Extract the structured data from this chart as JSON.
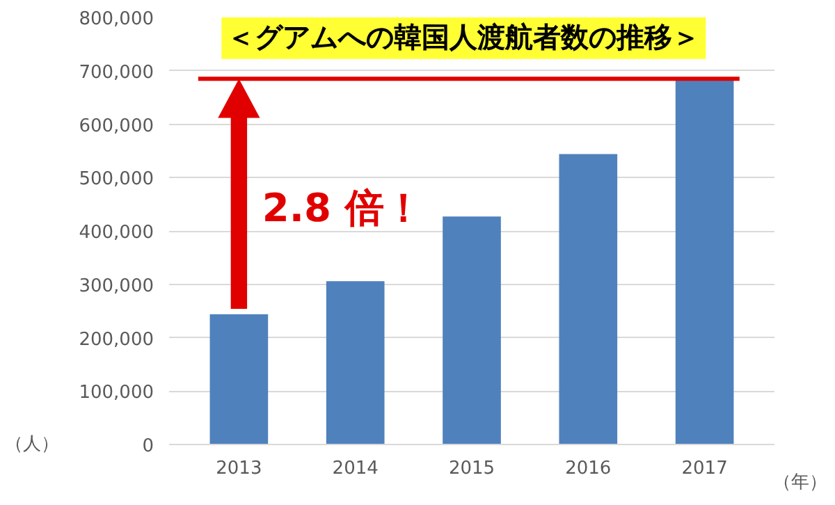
{
  "chart_data": {
    "type": "bar",
    "title": "＜グアムへの韓国人渡航者数の推移＞",
    "xlabel": "（年）",
    "ylabel": "（人）",
    "categories": [
      "2013",
      "2014",
      "2015",
      "2016",
      "2017"
    ],
    "values": [
      244000,
      306000,
      427000,
      544000,
      685000
    ],
    "color": "#4f81bd",
    "ylim": [
      0,
      800000
    ],
    "yticks": [
      {
        "value": 0,
        "label": "0"
      },
      {
        "value": 100000,
        "label": "100,000"
      },
      {
        "value": 200000,
        "label": "200,000"
      },
      {
        "value": 300000,
        "label": "300,000"
      },
      {
        "value": 400000,
        "label": "400,000"
      },
      {
        "value": 500000,
        "label": "500,000"
      },
      {
        "value": 600000,
        "label": "600,000"
      },
      {
        "value": 700000,
        "label": "700,000"
      },
      {
        "value": 800000,
        "label": "800,000"
      }
    ],
    "grid": "y",
    "legend": false,
    "ref_lines": [
      {
        "axis": "y",
        "value": 685000,
        "color": "#e00000",
        "line_style": "solid"
      }
    ],
    "annotations": [
      "2.8 倍！"
    ]
  }
}
